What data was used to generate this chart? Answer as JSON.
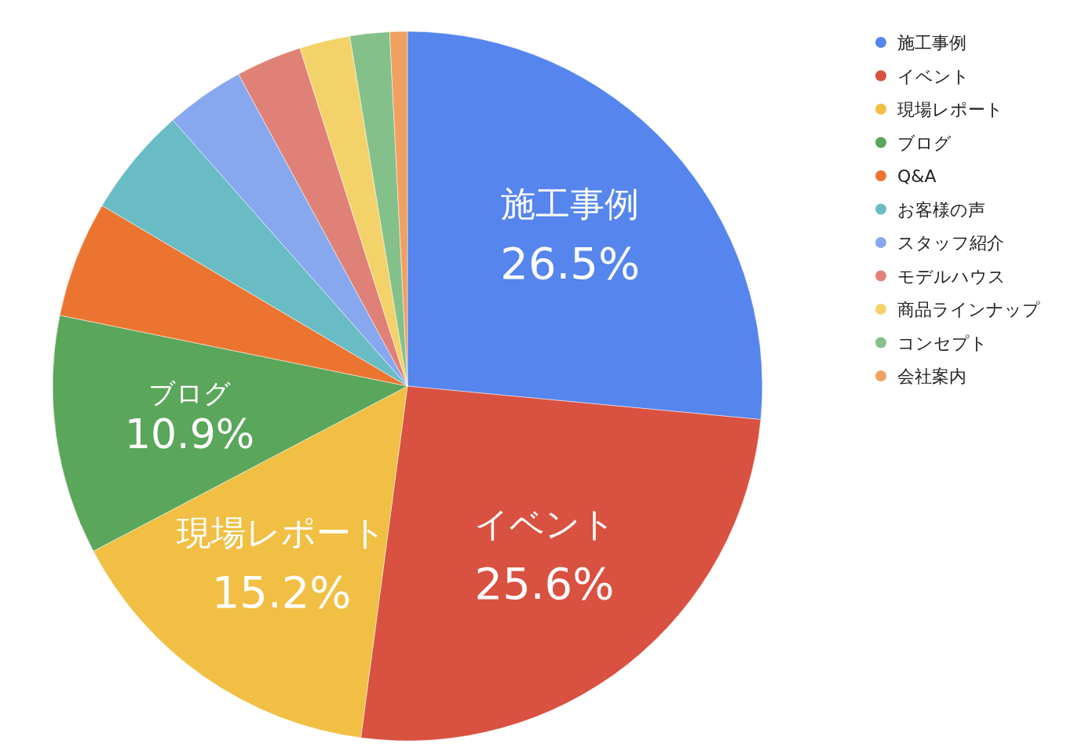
{
  "chart_data": {
    "type": "pie",
    "categories": [
      "施工事例",
      "イベント",
      "現場レポート",
      "ブログ",
      "Q&A",
      "お客様の声",
      "スタッフ紹介",
      "モデルハウス",
      "商品ラインナップ",
      "コンセプト",
      "会社案内"
    ],
    "values": [
      26.5,
      25.6,
      15.2,
      10.9,
      5.3,
      5.0,
      3.6,
      3.0,
      2.3,
      1.8,
      0.8
    ],
    "colors": [
      "#5585ed",
      "#d95140",
      "#f0bf43",
      "#5aa65a",
      "#eb7530",
      "#6abcc4",
      "#87a8ef",
      "#e08177",
      "#f4d26a",
      "#84c08a",
      "#f0a060"
    ],
    "value_labels": [
      "26.5%",
      "25.6%",
      "15.2%",
      "10.9%",
      null,
      null,
      null,
      null,
      null,
      null,
      null
    ],
    "legend": "top right"
  }
}
